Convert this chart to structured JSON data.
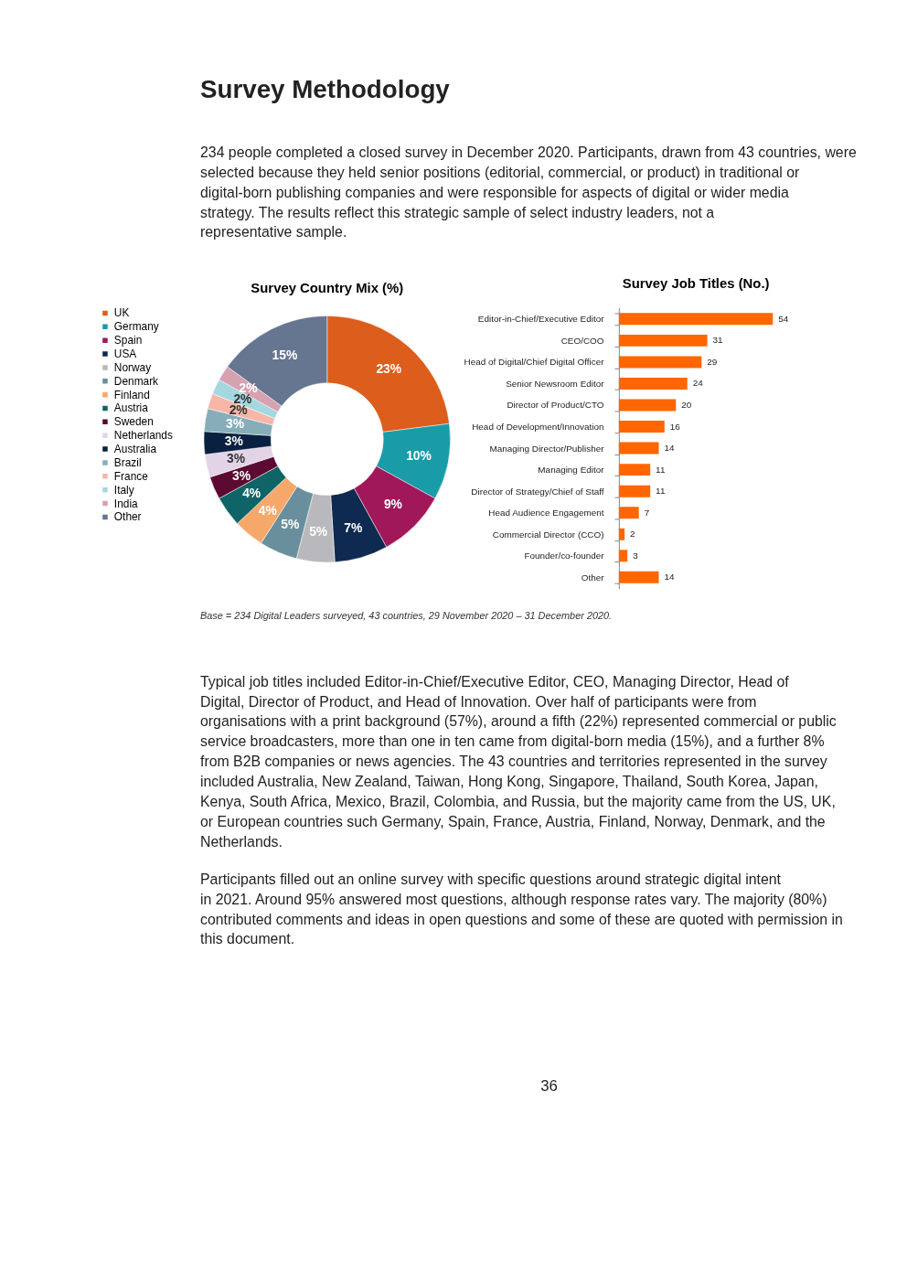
{
  "chart_data": [
    {
      "type": "donut",
      "title": "Survey Country Mix (%)",
      "categories": [
        "UK",
        "Germany",
        "Spain",
        "USA",
        "Norway",
        "Denmark",
        "Finland",
        "Austria",
        "Sweden",
        "Netherlands",
        "Australia",
        "Brazil",
        "France",
        "Italy",
        "India",
        "Other"
      ],
      "values": [
        23,
        10,
        9,
        7,
        5,
        5,
        4,
        4,
        3,
        3,
        3,
        3,
        2,
        2,
        2,
        15
      ],
      "value_labels": [
        "23%",
        "10%",
        "9%",
        "7%",
        "5%",
        "5%",
        "4%",
        "4%",
        "3%",
        "3%",
        "3%",
        "3%",
        "2%",
        "2%",
        "2%",
        "15%"
      ],
      "colors": [
        "#dc5d1c",
        "#1a9ba8",
        "#a0185a",
        "#0e2a50",
        "#b9b9bd",
        "#6a8f9c",
        "#f6a86b",
        "#0e6466",
        "#5c0a32",
        "#e2d4e6",
        "#0a2040",
        "#87aeb8",
        "#f8b6a8",
        "#a4d8e0",
        "#d6a2b0",
        "#667590"
      ],
      "legend": "left",
      "annotations": [
        "Survey Methodology",
        "234 people completed a closed survey in December 2020. Participants, drawn from 43 countries, were selected because they held senior positions (editorial, commercial, or product) in traditional or digital-born publishing companies and were responsible for aspects of digital or wider media strategy. The results reflect this strategic sample of select industry leaders, not a representative sample."
      ]
    },
    {
      "type": "bar",
      "orientation": "horizontal",
      "title": "Survey Job Titles (No.)",
      "categories": [
        "Editor-in-Chief/Executive Editor",
        "CEO/COO",
        "Head of Digital/Chief Digital Officer",
        "Senior Newsroom Editor",
        "Director of Product/CTO",
        "Head of Development/Innovation",
        "Managing Director/Publisher",
        "Managing Editor",
        "Director of Strategy/Chief of Staff",
        "Head Audience Engagement",
        "Commercial Director (CCO)",
        "Founder/co-founder",
        "Other"
      ],
      "values": [
        54,
        31,
        29,
        24,
        20,
        16,
        14,
        11,
        11,
        7,
        2,
        3,
        14
      ],
      "color": "#ff6600",
      "data_labels": true,
      "tick_labels": "y",
      "annotations": [
        "Base = 234 Digital Leaders surveyed, 43 countries, 29 November 2020 – 31 December 2020.",
        "Typical job titles included Editor-in-Chief/Executive Editor, CEO, Managing Director, Head of Digital, Director of Product, and Head of Innovation. Over half of participants were from organisations with a print background (57%), around a fifth (22%) represented commercial or public service broadcasters, more than one in ten came from digital-born media (15%), and a further 8% from B2B companies or news agencies. The 43 countries and territories represented in the survey included Australia, New Zealand, Taiwan, Hong Kong, Singapore, Thailand, South Korea, Japan, Kenya, South Africa, Mexico, Brazil, Colombia, and Russia, but the majority came from the US, UK, or European countries such Germany, Spain, France, Austria, Finland, Norway, Denmark, and the Netherlands.",
        "Participants filled out an online survey with specific questions around strategic digital intent in 2021. Around 95% answered most questions, although response rates vary. The majority (80%) contributed comments and ideas in open questions and some of these are quoted with permission in this document.",
        "36"
      ]
    }
  ]
}
